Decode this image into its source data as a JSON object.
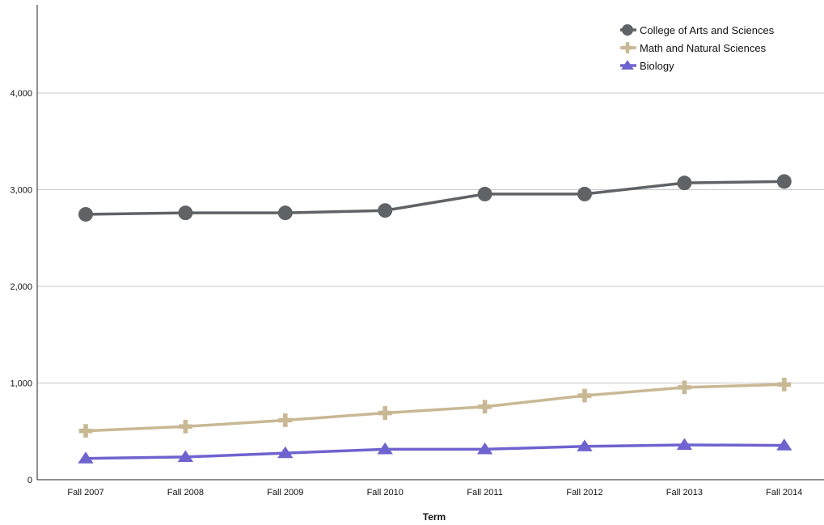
{
  "chart_data": {
    "type": "line",
    "title": "",
    "xlabel": "Term",
    "ylabel": "",
    "categories": [
      "Fall 2007",
      "Fall 2008",
      "Fall 2009",
      "Fall 2010",
      "Fall 2011",
      "Fall 2012",
      "Fall 2013",
      "Fall 2014"
    ],
    "ylim": [
      0,
      5000
    ],
    "yticks": [
      0,
      1000,
      2000,
      3000,
      4000
    ],
    "ytick_labels": [
      "0",
      "1,000",
      "2,000",
      "3,000",
      "4,000"
    ],
    "grid": true,
    "legend_position": "top-right",
    "series": [
      {
        "name": "College of Arts and Sciences",
        "color": "#5f6366",
        "marker": "circle",
        "values": [
          2745,
          2760,
          2760,
          2785,
          2955,
          2955,
          3070,
          3085
        ]
      },
      {
        "name": "Math and Natural Sciences",
        "color": "#c8b894",
        "marker": "cross",
        "values": [
          505,
          550,
          615,
          690,
          755,
          870,
          955,
          985
        ]
      },
      {
        "name": "Biology",
        "color": "#6f63cf",
        "marker": "triangle",
        "values": [
          220,
          235,
          275,
          315,
          315,
          345,
          360,
          355
        ]
      }
    ]
  }
}
